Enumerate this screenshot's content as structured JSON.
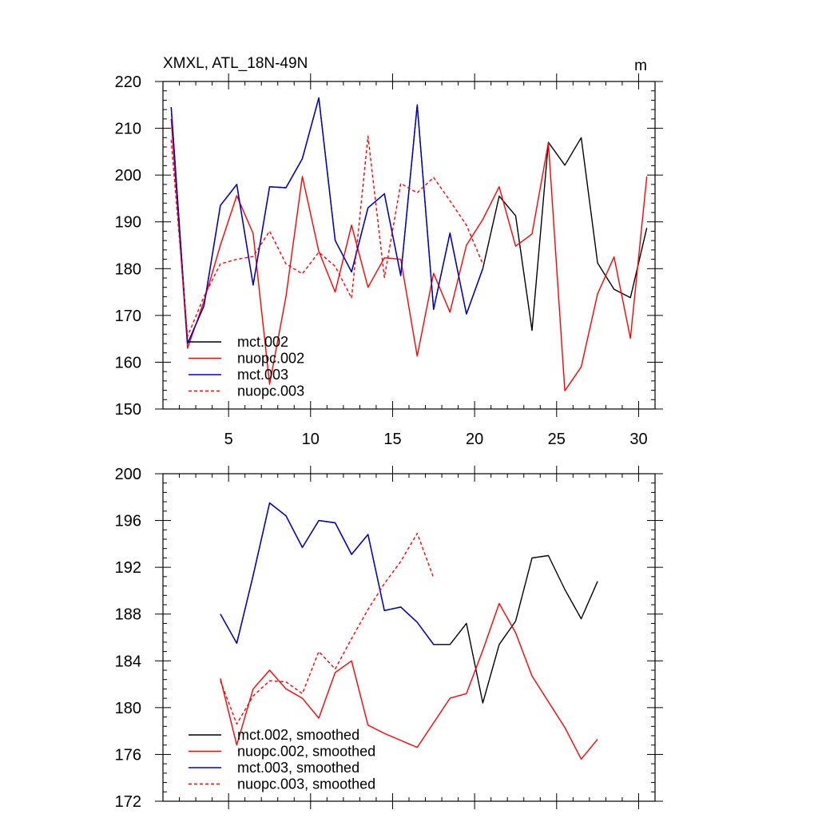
{
  "chart_data": [
    {
      "type": "line",
      "title": "XMXL, ATL_18N-49N",
      "units": "m",
      "xlim": [
        1,
        31
      ],
      "ylim": [
        150,
        220
      ],
      "x_ticks": [
        5,
        10,
        15,
        20,
        25,
        30
      ],
      "y_ticks": [
        150,
        160,
        170,
        180,
        190,
        200,
        210,
        220
      ],
      "legend_position": "bottom-left",
      "series": [
        {
          "name": "mct.002",
          "color": "#000000",
          "dash": "solid",
          "x": [
            1.5,
            2.5,
            3.5,
            4.5,
            5.5,
            6.5,
            7.5,
            8.5,
            9.5,
            10.5,
            11.5,
            12.5,
            13.5,
            14.5,
            15.5,
            16.5,
            17.5,
            18.5,
            19.5,
            20.5,
            21.5,
            22.5,
            23.5,
            24.5,
            25.5,
            26.5,
            27.5,
            28.5,
            29.5,
            30.5
          ],
          "values": [
            214.5,
            164,
            172,
            193.5,
            198,
            176.5,
            197.5,
            197.3,
            203.5,
            216.5,
            186,
            179.3,
            193,
            196,
            178.5,
            215,
            171.3,
            187.6,
            170.3,
            180,
            195.5,
            191.3,
            166.8,
            207,
            202.1,
            208,
            181.2,
            175.6,
            173.8,
            188.7
          ]
        },
        {
          "name": "nuopc.002",
          "color": "#ff0000",
          "dash": "solid",
          "x": [
            1.5,
            2.5,
            3.5,
            4.5,
            5.5,
            6.5,
            7.5,
            8.5,
            9.5,
            10.5,
            11.5,
            12.5,
            13.5,
            14.5,
            15.5,
            16.5,
            17.5,
            18.5,
            19.5,
            20.5,
            21.5,
            22.5,
            23.5,
            24.5,
            25.5,
            26.5,
            27.5,
            28.5,
            29.5,
            30.5
          ],
          "values": [
            212,
            163,
            173,
            185,
            195.6,
            187.5,
            155.3,
            174,
            199.7,
            183.7,
            175,
            189.3,
            176,
            182.3,
            182,
            161.3,
            179,
            170.7,
            185,
            190.5,
            197.5,
            184.8,
            187.4,
            206.9,
            153.9,
            159,
            174.6,
            182.5,
            165.1,
            199.7
          ]
        },
        {
          "name": "mct.003",
          "color": "#0000cc",
          "dash": "solid",
          "x": [
            1.5,
            2.5,
            3.5,
            4.5,
            5.5,
            6.5,
            7.5,
            8.5,
            9.5,
            10.5,
            11.5,
            12.5,
            13.5,
            14.5,
            15.5,
            16.5,
            17.5,
            18.5,
            19.5,
            20.5
          ],
          "values": [
            214.5,
            164,
            172,
            193.5,
            198,
            176.5,
            197.5,
            197.3,
            203.5,
            216.5,
            186,
            179.3,
            193,
            196,
            178.5,
            215,
            171.3,
            187.6,
            170.3,
            180
          ]
        },
        {
          "name": "nuopc.003",
          "color": "#ff0000",
          "dash": "dashed",
          "x": [
            1.5,
            2.5,
            3.5,
            4.5,
            5.5,
            6.5,
            7.5,
            8.5,
            9.5,
            10.5,
            11.5,
            12.5,
            13.5,
            14.5,
            15.5,
            16.5,
            17.5,
            18.5,
            19.5,
            20.5
          ],
          "values": [
            207.5,
            165.5,
            174,
            181,
            182,
            182.6,
            188,
            181,
            178.9,
            183.5,
            180.5,
            173.7,
            208.3,
            178.1,
            198.2,
            196.2,
            199.5,
            194.5,
            189.3,
            181
          ]
        }
      ]
    },
    {
      "type": "line",
      "title": "",
      "xlim": [
        1,
        31
      ],
      "ylim": [
        172,
        200
      ],
      "y_ticks": [
        172,
        176,
        180,
        184,
        188,
        192,
        196,
        200
      ],
      "legend_position": "bottom-left",
      "series": [
        {
          "name": "mct.002, smoothed",
          "color": "#000000",
          "dash": "solid",
          "x": [
            4.5,
            5.5,
            6.5,
            7.5,
            8.5,
            9.5,
            10.5,
            11.5,
            12.5,
            13.5,
            14.5,
            15.5,
            16.5,
            17.5,
            18.5,
            19.5,
            20.5,
            21.5,
            22.5,
            23.5,
            24.5,
            25.5,
            26.5,
            27.5
          ],
          "values": [
            188,
            185.5,
            191.3,
            197.5,
            196.4,
            193.7,
            196,
            195.8,
            193.1,
            194.8,
            188.3,
            188.6,
            187.3,
            185.4,
            185.4,
            187.2,
            180.4,
            185.4,
            187.4,
            192.8,
            193,
            190.1,
            187.6,
            190.8
          ]
        },
        {
          "name": "nuopc.002, smoothed",
          "color": "#ff0000",
          "dash": "solid",
          "x": [
            4.5,
            5.5,
            6.5,
            7.5,
            8.5,
            9.5,
            10.5,
            11.5,
            12.5,
            13.5,
            14.5,
            15.5,
            16.5,
            17.5,
            18.5,
            19.5,
            20.5,
            21.5,
            22.5,
            23.5,
            24.5,
            25.5,
            26.5,
            27.5
          ],
          "values": [
            182.5,
            176.8,
            181.6,
            183.2,
            181.6,
            180.8,
            179.1,
            183,
            184,
            178.5,
            177.8,
            177.2,
            176.6,
            178.7,
            180.8,
            181.2,
            184.9,
            188.9,
            186.4,
            182.7,
            180.5,
            178.3,
            175.6,
            177.3
          ]
        },
        {
          "name": "mct.003, smoothed",
          "color": "#0000cc",
          "dash": "solid",
          "x": [
            4.5,
            5.5,
            6.5,
            7.5,
            8.5,
            9.5,
            10.5,
            11.5,
            12.5,
            13.5,
            14.5,
            15.5,
            16.5,
            17.5
          ],
          "values": [
            188,
            185.5,
            191.3,
            197.5,
            196.4,
            193.7,
            196,
            195.8,
            193.1,
            194.8,
            188.3,
            188.6,
            187.3,
            185.4
          ]
        },
        {
          "name": "nuopc.003, smoothed",
          "color": "#ff0000",
          "dash": "dashed",
          "x": [
            4.5,
            5.5,
            6.5,
            7.5,
            8.5,
            9.5,
            10.5,
            11.5,
            12.5,
            13.5,
            14.5,
            15.5,
            16.5,
            17.5
          ],
          "values": [
            182.3,
            178.6,
            181,
            182.3,
            182.2,
            181.2,
            184.8,
            183.3,
            185.9,
            188.4,
            190.6,
            192.5,
            194.9,
            191.1
          ]
        }
      ]
    }
  ]
}
